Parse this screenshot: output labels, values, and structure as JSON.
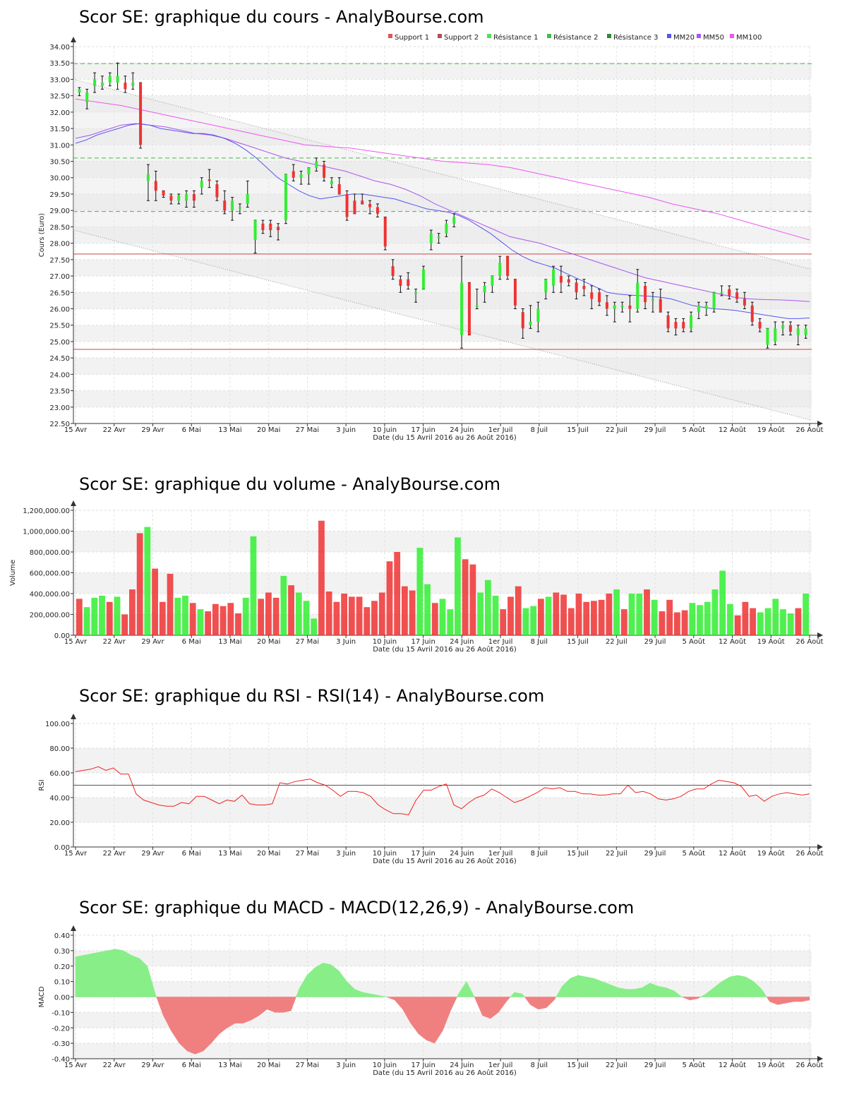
{
  "chart_data": [
    {
      "type": "candlestick",
      "title": "Scor SE: graphique du cours - AnalyBourse.com",
      "ylabel": "Cours (Euro)",
      "xlabel": "Date (du 15 Avril 2016 au 26 Août 2016)",
      "ylim": [
        22.5,
        34.0
      ],
      "yticks": [
        "34.00",
        "33.50",
        "33.00",
        "32.50",
        "32.00",
        "31.50",
        "31.00",
        "30.50",
        "30.00",
        "29.50",
        "29.00",
        "28.50",
        "28.00",
        "27.50",
        "27.00",
        "26.50",
        "26.00",
        "25.50",
        "25.00",
        "24.50",
        "24.00",
        "23.50",
        "23.00",
        "22.50"
      ],
      "xticks": [
        "15 Avr",
        "22 Avr",
        "29 Avr",
        "6 Mai",
        "13 Mai",
        "20 Mai",
        "27 Mai",
        "3 Juin",
        "10 Juin",
        "17 Juin",
        "24 Juin",
        "1er Juil",
        "8 Juil",
        "15 Juil",
        "22 Juil",
        "29 Juil",
        "5 Août",
        "12 Août",
        "19 Août",
        "26 Août"
      ],
      "legend": [
        "Support 1",
        "Support 2",
        "Résistance 1",
        "Résistance 2",
        "Résistance 3",
        "MM20",
        "MM50",
        "MM100"
      ],
      "legend_colors": [
        "#e05555",
        "#b05050",
        "#55dd55",
        "#44bb44",
        "#338833",
        "#5555ee",
        "#aa55ee",
        "#ee55ee"
      ],
      "supports": [
        27.67,
        24.76
      ],
      "resistances": [
        33.48,
        30.6,
        28.97
      ],
      "ohlc": [
        [
          32.6,
          32.75,
          32.5,
          32.7
        ],
        [
          32.3,
          32.7,
          32.1,
          32.6
        ],
        [
          32.8,
          33.2,
          32.6,
          33.0
        ],
        [
          32.8,
          33.1,
          32.7,
          32.9
        ],
        [
          32.9,
          33.2,
          32.8,
          33.1
        ],
        [
          32.9,
          33.5,
          32.7,
          33.1
        ],
        [
          32.9,
          33.1,
          32.6,
          32.7
        ],
        [
          32.8,
          33.2,
          32.7,
          32.9
        ],
        [
          32.9,
          32.9,
          30.9,
          31.0
        ],
        [
          29.9,
          30.4,
          29.3,
          30.1
        ],
        [
          29.9,
          30.2,
          29.3,
          29.6
        ],
        [
          29.6,
          29.6,
          29.4,
          29.45
        ],
        [
          29.45,
          29.5,
          29.2,
          29.3
        ],
        [
          29.3,
          29.5,
          29.2,
          29.45
        ],
        [
          29.3,
          29.6,
          29.1,
          29.5
        ],
        [
          29.5,
          29.6,
          29.1,
          29.3
        ],
        [
          29.7,
          30.0,
          29.5,
          29.9
        ],
        [
          29.95,
          30.25,
          29.7,
          29.9
        ],
        [
          29.8,
          29.9,
          29.3,
          29.4
        ],
        [
          29.3,
          29.6,
          28.9,
          29.0
        ],
        [
          29.0,
          29.4,
          28.7,
          29.3
        ],
        [
          29.1,
          29.2,
          28.9,
          29.1
        ],
        [
          29.2,
          29.9,
          29.1,
          29.5
        ],
        [
          28.1,
          28.7,
          27.7,
          28.7
        ],
        [
          28.6,
          28.7,
          28.3,
          28.4
        ],
        [
          28.6,
          28.7,
          28.2,
          28.4
        ],
        [
          28.5,
          28.6,
          28.1,
          28.4
        ],
        [
          28.7,
          30.1,
          28.6,
          30.1
        ],
        [
          30.2,
          30.4,
          29.9,
          30.0
        ],
        [
          30.0,
          30.2,
          29.8,
          30.1
        ],
        [
          30.1,
          30.3,
          29.8,
          30.3
        ],
        [
          30.3,
          30.6,
          30.2,
          30.5
        ],
        [
          30.4,
          30.5,
          29.9,
          30.0
        ],
        [
          29.8,
          30.0,
          29.7,
          29.9
        ],
        [
          29.8,
          30.0,
          29.5,
          29.5
        ],
        [
          29.5,
          29.6,
          28.7,
          28.8
        ],
        [
          29.3,
          29.5,
          28.9,
          28.9
        ],
        [
          29.3,
          29.5,
          29.2,
          29.2
        ],
        [
          29.2,
          29.3,
          28.9,
          29.1
        ],
        [
          29.1,
          29.2,
          28.8,
          28.9
        ],
        [
          28.8,
          28.8,
          27.8,
          27.9
        ],
        [
          27.3,
          27.5,
          26.9,
          27.0
        ],
        [
          26.9,
          27.0,
          26.5,
          26.7
        ],
        [
          26.9,
          27.1,
          26.6,
          26.7
        ],
        [
          26.5,
          26.6,
          26.2,
          26.5
        ],
        [
          26.6,
          27.3,
          26.6,
          27.2
        ],
        [
          28.0,
          28.4,
          27.8,
          28.3
        ],
        [
          28.2,
          28.3,
          28.0,
          28.2
        ],
        [
          28.3,
          28.7,
          28.2,
          28.6
        ],
        [
          28.6,
          28.9,
          28.5,
          28.8
        ],
        [
          25.2,
          27.6,
          24.8,
          26.8
        ],
        [
          26.8,
          26.8,
          25.2,
          25.2
        ],
        [
          26.1,
          26.6,
          26.0,
          26.1
        ],
        [
          26.5,
          26.8,
          26.2,
          26.7
        ],
        [
          26.7,
          27.0,
          26.5,
          27.0
        ],
        [
          27.0,
          27.6,
          26.9,
          27.4
        ],
        [
          27.6,
          27.6,
          26.9,
          27.0
        ],
        [
          26.9,
          26.9,
          26.0,
          26.1
        ],
        [
          25.9,
          26.0,
          25.1,
          25.4
        ],
        [
          25.5,
          26.1,
          25.4,
          25.6
        ],
        [
          25.6,
          26.2,
          25.3,
          26.0
        ],
        [
          26.5,
          26.9,
          26.3,
          26.9
        ],
        [
          26.7,
          27.3,
          26.5,
          27.2
        ],
        [
          27.0,
          27.3,
          26.5,
          26.8
        ],
        [
          26.9,
          27.0,
          26.7,
          26.8
        ],
        [
          26.8,
          26.9,
          26.3,
          26.5
        ],
        [
          26.7,
          26.9,
          26.4,
          26.6
        ],
        [
          26.5,
          26.7,
          26.0,
          26.3
        ],
        [
          26.5,
          26.6,
          26.1,
          26.2
        ],
        [
          26.2,
          26.4,
          25.8,
          26.0
        ],
        [
          26.0,
          26.2,
          25.6,
          26.1
        ],
        [
          26.1,
          26.2,
          25.9,
          26.1
        ],
        [
          26.1,
          26.4,
          25.6,
          26.0
        ],
        [
          26.0,
          27.2,
          25.9,
          26.8
        ],
        [
          26.7,
          26.8,
          26.0,
          26.2
        ],
        [
          26.3,
          26.5,
          25.9,
          26.3
        ],
        [
          26.3,
          26.6,
          25.9,
          25.9
        ],
        [
          25.8,
          25.9,
          25.3,
          25.4
        ],
        [
          25.6,
          25.7,
          25.2,
          25.4
        ],
        [
          25.6,
          25.7,
          25.3,
          25.4
        ],
        [
          25.4,
          25.9,
          25.3,
          25.8
        ],
        [
          25.9,
          26.2,
          25.7,
          26.1
        ],
        [
          26.0,
          26.2,
          25.8,
          26.1
        ],
        [
          26.0,
          26.5,
          25.9,
          26.5
        ],
        [
          26.5,
          26.7,
          26.4,
          26.5
        ],
        [
          26.6,
          26.7,
          26.3,
          26.4
        ],
        [
          26.5,
          26.6,
          26.2,
          26.3
        ],
        [
          26.3,
          26.5,
          26.0,
          26.1
        ],
        [
          26.1,
          26.2,
          25.5,
          25.6
        ],
        [
          25.6,
          25.7,
          25.3,
          25.4
        ],
        [
          24.9,
          25.4,
          24.8,
          25.4
        ],
        [
          25.0,
          25.6,
          24.9,
          25.4
        ],
        [
          25.4,
          25.6,
          25.2,
          25.5
        ],
        [
          25.5,
          25.6,
          25.2,
          25.3
        ],
        [
          25.2,
          25.5,
          24.9,
          25.4
        ],
        [
          25.2,
          25.5,
          25.1,
          25.4
        ]
      ],
      "mm20": [
        31.05,
        31.15,
        31.3,
        31.4,
        31.5,
        31.6,
        31.65,
        31.6,
        31.5,
        31.45,
        31.4,
        31.35,
        31.35,
        31.3,
        31.2,
        31.05,
        30.85,
        30.6,
        30.3,
        30.0,
        29.8,
        29.6,
        29.45,
        29.35,
        29.4,
        29.45,
        29.5,
        29.5,
        29.45,
        29.4,
        29.35,
        29.25,
        29.15,
        29.05,
        29.0,
        28.95,
        28.85,
        28.7,
        28.5,
        28.3,
        28.05,
        27.8,
        27.6,
        27.45,
        27.35,
        27.25,
        27.1,
        26.95,
        26.8,
        26.65,
        26.5,
        26.45,
        26.42,
        26.4,
        26.38,
        26.35,
        26.3,
        26.2,
        26.1,
        26.05,
        26.0,
        25.98,
        25.95,
        25.9,
        25.85,
        25.8,
        25.75,
        25.7,
        25.7,
        25.72
      ],
      "mm50": [
        31.2,
        31.3,
        31.45,
        31.6,
        31.65,
        31.6,
        31.55,
        31.45,
        31.35,
        31.3,
        31.2,
        31.05,
        30.9,
        30.75,
        30.6,
        30.5,
        30.4,
        30.3,
        30.2,
        30.05,
        29.9,
        29.8,
        29.65,
        29.45,
        29.2,
        29.0,
        28.8,
        28.6,
        28.4,
        28.2,
        28.1,
        28.0,
        27.85,
        27.7,
        27.55,
        27.4,
        27.25,
        27.1,
        26.95,
        26.85,
        26.75,
        26.65,
        26.55,
        26.45,
        26.35,
        26.3,
        26.28,
        26.27,
        26.25,
        26.22
      ],
      "mm100": [
        32.4,
        32.3,
        32.2,
        32.05,
        31.9,
        31.75,
        31.6,
        31.45,
        31.3,
        31.15,
        31.0,
        30.95,
        30.9,
        30.8,
        30.7,
        30.6,
        30.5,
        30.45,
        30.4,
        30.3,
        30.15,
        30.0,
        29.85,
        29.7,
        29.55,
        29.4,
        29.2,
        29.05,
        28.9,
        28.7,
        28.5,
        28.3,
        28.1
      ]
    },
    {
      "type": "bar",
      "title": "Scor SE: graphique du volume - AnalyBourse.com",
      "ylabel": "Volume",
      "xlabel": "Date (du 15 Avril 2016 au 26 Août 2016)",
      "ylim": [
        0,
        1200000
      ],
      "yticks": [
        "1,200,000.00",
        "1,000,000.00",
        "800,000.00",
        "600,000.00",
        "400,000.00",
        "200,000.00",
        "0.00"
      ],
      "xticks": [
        "15 Avr",
        "22 Avr",
        "29 Avr",
        "6 Mai",
        "13 Mai",
        "20 Mai",
        "27 Mai",
        "3 Juin",
        "10 Juin",
        "17 Juin",
        "24 Juin",
        "1er Juil",
        "8 Juil",
        "15 Juil",
        "22 Juil",
        "29 Juil",
        "5 Août",
        "12 Août",
        "19 Août",
        "26 Août"
      ],
      "values": [
        350000,
        270000,
        360000,
        380000,
        320000,
        370000,
        200000,
        440000,
        980000,
        1040000,
        640000,
        320000,
        590000,
        360000,
        380000,
        310000,
        250000,
        230000,
        300000,
        280000,
        310000,
        210000,
        360000,
        950000,
        350000,
        410000,
        360000,
        570000,
        480000,
        410000,
        330000,
        160000,
        1100000,
        420000,
        320000,
        400000,
        370000,
        370000,
        270000,
        330000,
        410000,
        710000,
        800000,
        470000,
        430000,
        840000,
        490000,
        310000,
        350000,
        250000,
        940000,
        730000,
        680000,
        410000,
        530000,
        380000,
        250000,
        370000,
        470000,
        260000,
        280000,
        350000,
        370000,
        410000,
        390000,
        260000,
        400000,
        320000,
        330000,
        340000,
        400000,
        440000,
        250000,
        400000,
        400000,
        440000,
        340000,
        230000,
        340000,
        220000,
        240000,
        310000,
        290000,
        320000,
        440000,
        620000,
        300000,
        190000,
        320000,
        260000,
        220000,
        260000,
        350000,
        250000,
        210000,
        260000,
        400000
      ],
      "colors": [
        "r",
        "g",
        "g",
        "g",
        "r",
        "g",
        "r",
        "r",
        "r",
        "g",
        "r",
        "r",
        "r",
        "g",
        "g",
        "r",
        "g",
        "r",
        "r",
        "r",
        "r",
        "r",
        "g",
        "g",
        "r",
        "r",
        "r",
        "g",
        "r",
        "g",
        "g",
        "g",
        "r",
        "r",
        "r",
        "r",
        "r",
        "r",
        "r",
        "r",
        "r",
        "r",
        "r",
        "r",
        "r",
        "g",
        "g",
        "r",
        "g",
        "g",
        "g",
        "r",
        "r",
        "g",
        "g",
        "g",
        "r",
        "r",
        "r",
        "g",
        "g",
        "r",
        "g",
        "r",
        "r",
        "r",
        "r",
        "r",
        "r",
        "r",
        "r",
        "g",
        "r",
        "g",
        "g",
        "r",
        "g",
        "r",
        "r",
        "r",
        "r",
        "g",
        "g",
        "g",
        "g",
        "g",
        "g",
        "r",
        "r",
        "r",
        "g",
        "g",
        "g",
        "g",
        "g",
        "r",
        "g"
      ]
    },
    {
      "type": "line",
      "title": "Scor SE: graphique du RSI - RSI(14) - AnalyBourse.com",
      "ylabel": "RSI",
      "xlabel": "Date (du 15 Avril 2016 au 26 Août 2016)",
      "ylim": [
        0,
        100
      ],
      "reference_line": 50,
      "yticks": [
        "100.00",
        "80.00",
        "60.00",
        "40.00",
        "20.00",
        "0.00"
      ],
      "xticks": [
        "15 Avr",
        "22 Avr",
        "29 Avr",
        "6 Mai",
        "13 Mai",
        "20 Mai",
        "27 Mai",
        "3 Juin",
        "10 Juin",
        "17 Juin",
        "24 Juin",
        "1er Juil",
        "8 Juil",
        "15 Juil",
        "22 Juil",
        "29 Juil",
        "5 Août",
        "12 Août",
        "19 Août",
        "26 Août"
      ],
      "values": [
        61,
        62,
        63,
        65,
        62,
        64,
        59,
        59,
        43,
        38,
        36,
        34,
        33,
        33,
        36,
        35,
        41,
        41,
        38,
        35,
        38,
        37,
        42,
        35,
        34,
        34,
        35,
        52,
        51,
        53,
        54,
        55,
        52,
        50,
        46,
        41,
        45,
        45,
        44,
        41,
        34,
        30,
        27,
        27,
        26,
        38,
        46,
        46,
        49,
        51,
        34,
        31,
        36,
        40,
        42,
        47,
        44,
        40,
        36,
        38,
        41,
        44,
        48,
        47,
        48,
        45,
        45,
        43,
        43,
        42,
        42,
        43,
        43,
        50,
        44,
        45,
        43,
        39,
        38,
        39,
        41,
        45,
        47,
        47,
        51,
        54,
        53,
        52,
        49,
        41,
        42,
        37,
        41,
        43,
        44,
        43,
        42,
        43
      ]
    },
    {
      "type": "area",
      "title": "Scor SE: graphique du MACD - MACD(12,26,9) - AnalyBourse.com",
      "ylabel": "MACD",
      "xlabel": "Date (du 15 Avril 2016 au 26 Août 2016)",
      "ylim": [
        -0.4,
        0.4
      ],
      "yticks": [
        "0.40",
        "0.30",
        "0.20",
        "0.10",
        "0.00",
        "-0.10",
        "-0.20",
        "-0.30",
        "-0.40"
      ],
      "xticks": [
        "15 Avr",
        "22 Avr",
        "29 Avr",
        "6 Mai",
        "13 Mai",
        "20 Mai",
        "27 Mai",
        "3 Juin",
        "10 Juin",
        "17 Juin",
        "24 Juin",
        "1er Juil",
        "8 Juil",
        "15 Juil",
        "22 Juil",
        "29 Juil",
        "5 Août",
        "12 Août",
        "19 Août",
        "26 Août"
      ],
      "values": [
        0.26,
        0.27,
        0.28,
        0.29,
        0.3,
        0.31,
        0.3,
        0.27,
        0.25,
        0.2,
        0.02,
        -0.12,
        -0.22,
        -0.3,
        -0.35,
        -0.37,
        -0.35,
        -0.3,
        -0.24,
        -0.2,
        -0.17,
        -0.17,
        -0.15,
        -0.12,
        -0.08,
        -0.1,
        -0.1,
        -0.09,
        0.05,
        0.14,
        0.19,
        0.22,
        0.21,
        0.17,
        0.1,
        0.05,
        0.03,
        0.02,
        0.01,
        0.0,
        -0.02,
        -0.08,
        -0.17,
        -0.24,
        -0.28,
        -0.3,
        -0.22,
        -0.09,
        0.02,
        0.1,
        0.0,
        -0.12,
        -0.14,
        -0.1,
        -0.03,
        0.03,
        0.02,
        -0.05,
        -0.08,
        -0.07,
        -0.02,
        0.07,
        0.12,
        0.14,
        0.13,
        0.12,
        0.1,
        0.08,
        0.06,
        0.05,
        0.05,
        0.06,
        0.09,
        0.07,
        0.06,
        0.04,
        0.0,
        -0.02,
        -0.01,
        0.02,
        0.06,
        0.1,
        0.13,
        0.14,
        0.13,
        0.1,
        0.05,
        -0.03,
        -0.05,
        -0.04,
        -0.03,
        -0.03,
        -0.02
      ]
    }
  ]
}
